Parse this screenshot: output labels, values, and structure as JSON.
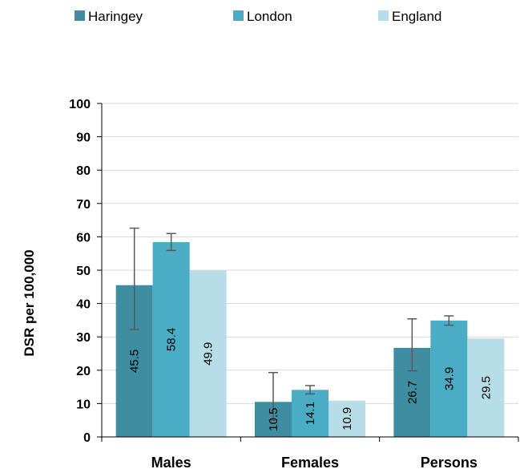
{
  "chart_data": {
    "type": "bar",
    "title": "",
    "xlabel": "",
    "ylabel": "DSR per 100,000",
    "categories": [
      "Males",
      "Females",
      "Persons"
    ],
    "ylim": [
      0,
      100
    ],
    "yticks": [
      0,
      10,
      20,
      30,
      40,
      50,
      60,
      70,
      80,
      90,
      100
    ],
    "grid": true,
    "legend_position": "top",
    "series": [
      {
        "name": "Haringey",
        "color": "#3E8DA0",
        "values": [
          45.5,
          10.5,
          26.7
        ],
        "labels": [
          "45.5",
          "10.5",
          "26.7"
        ],
        "error_low": [
          32.2,
          5.0,
          19.8
        ],
        "error_high": [
          62.6,
          19.3,
          35.4
        ]
      },
      {
        "name": "London",
        "color": "#4BACC6",
        "values": [
          58.4,
          14.1,
          34.9
        ],
        "labels": [
          "58.4",
          "14.1",
          "34.9"
        ],
        "error_low": [
          55.9,
          12.9,
          33.5
        ],
        "error_high": [
          61.0,
          15.4,
          36.3
        ]
      },
      {
        "name": "England",
        "color": "#B7DEE8",
        "values": [
          49.9,
          10.9,
          29.5
        ],
        "labels": [
          "49.9",
          "10.9",
          "29.5"
        ]
      }
    ]
  }
}
